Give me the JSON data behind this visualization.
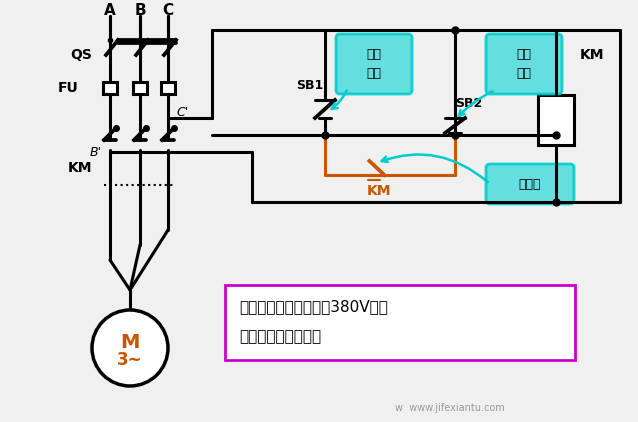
{
  "bg_color": "#f0f0f0",
  "line_color": "#000000",
  "orange_color": "#cc5500",
  "cyan_color": "#00cccc",
  "cyan_fill": "#55dddd",
  "note_border": "#cc00cc",
  "note_text1": "注意：接触器线圈电压380V时，",
  "note_text2": "采用此种接线方式。",
  "watermark": "w  www.jifexiantu.com"
}
